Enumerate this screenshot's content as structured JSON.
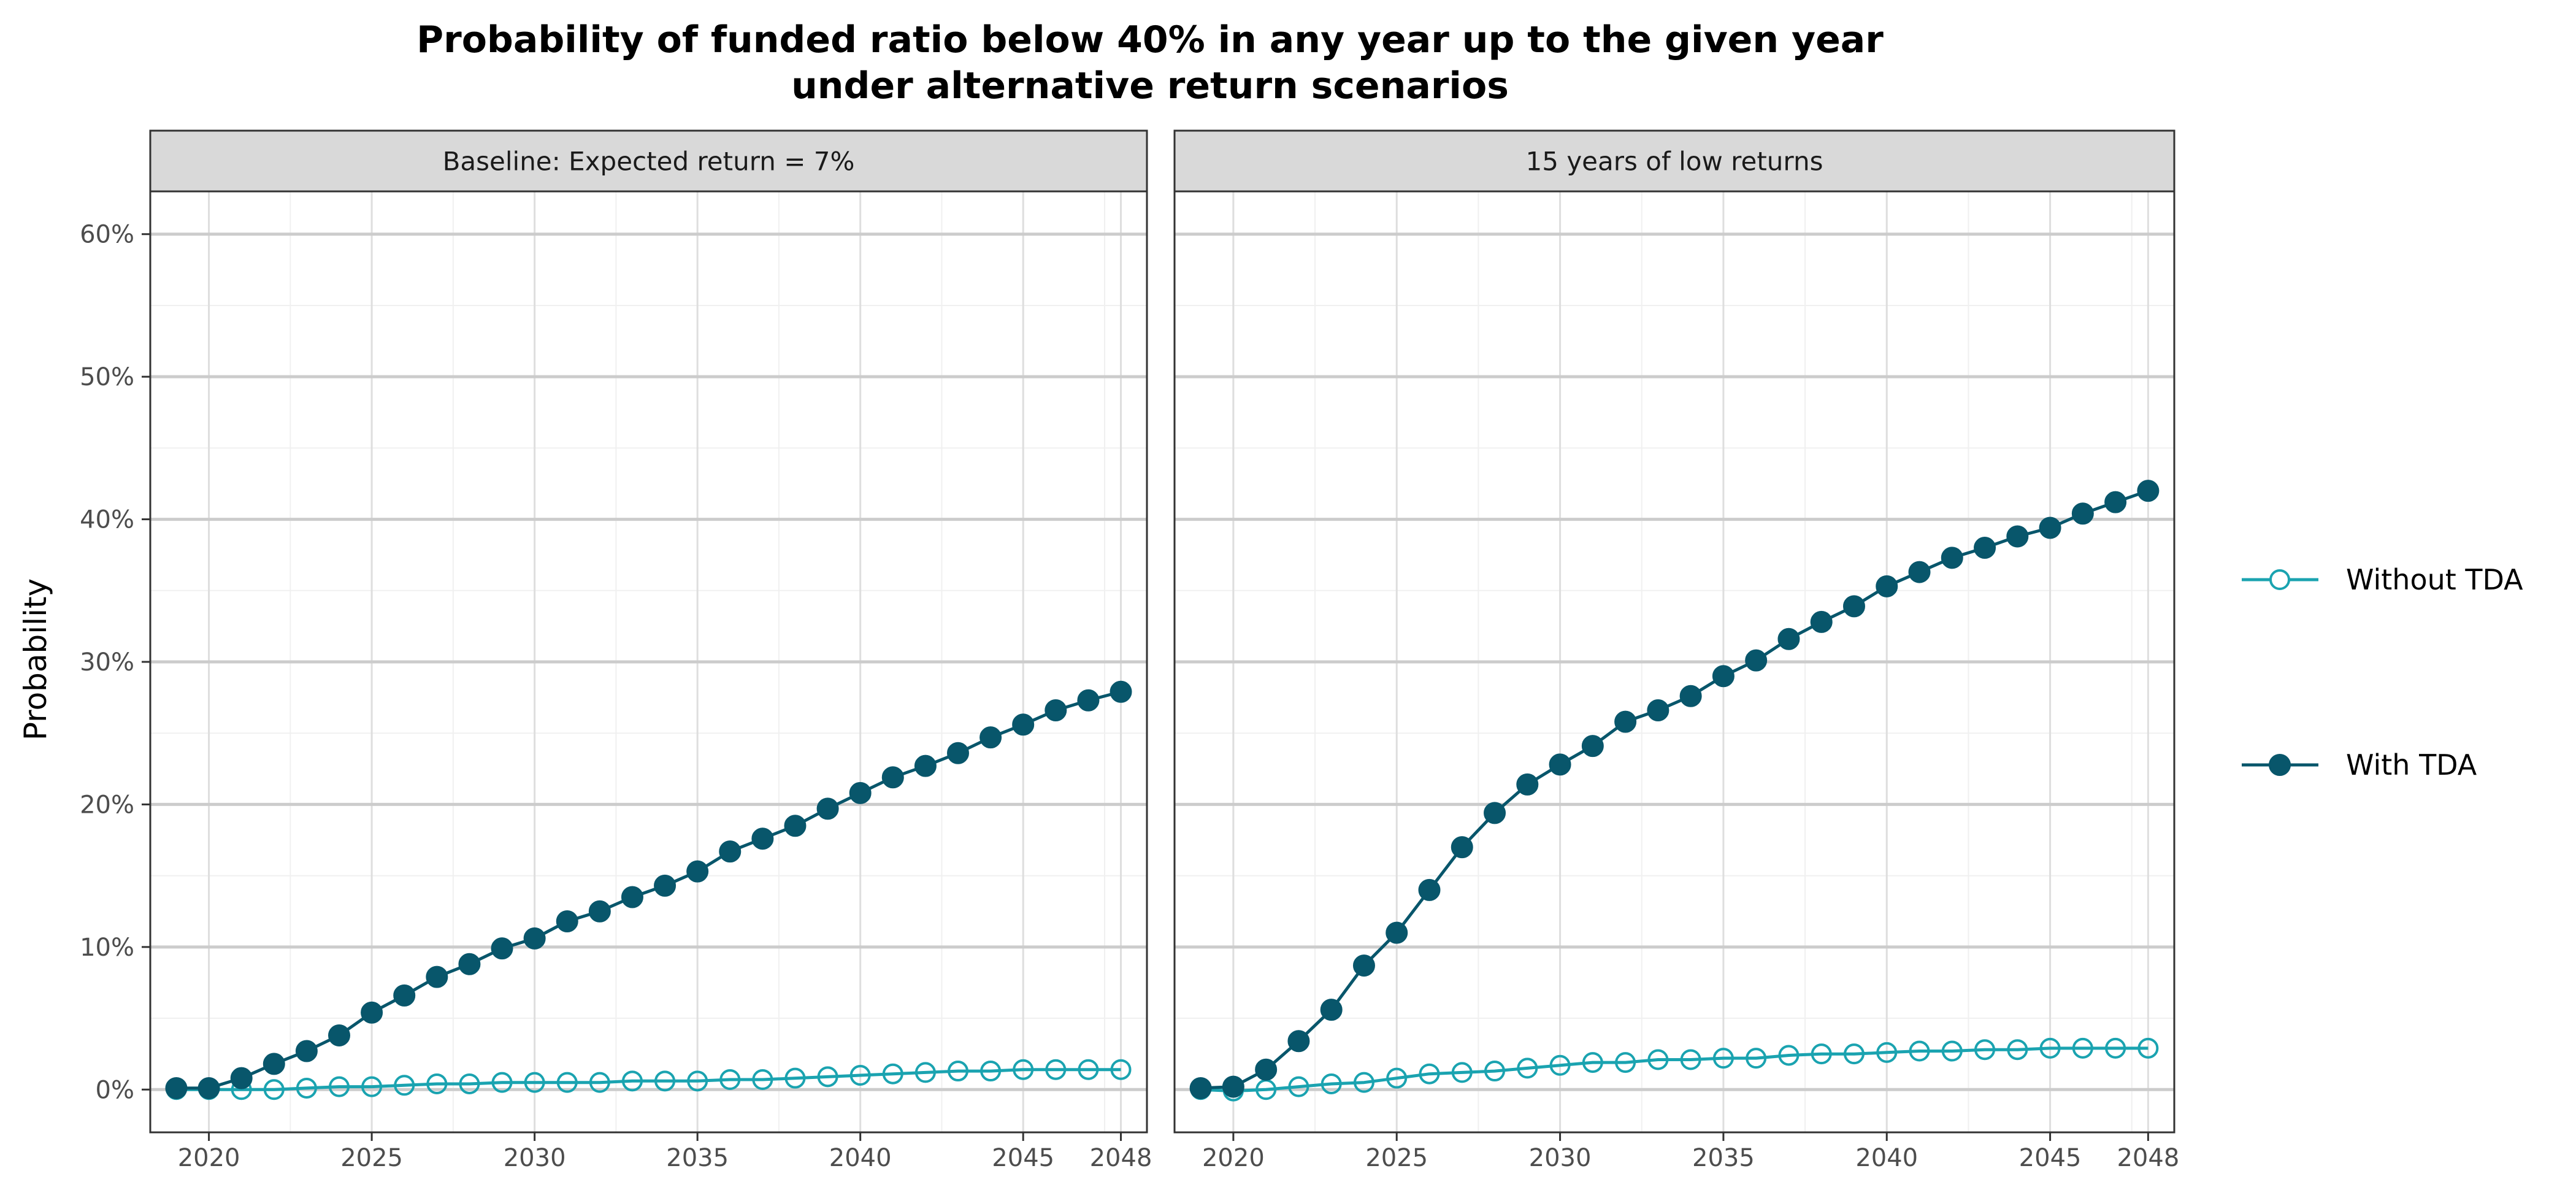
{
  "chart_data": {
    "type": "line",
    "title_lines": [
      "Probability of funded ratio below 40% in any year up to the given year",
      "under alternative return scenarios"
    ],
    "ylabel": "Probability",
    "xlabel": "",
    "xlim": [
      2018.2,
      2048.8
    ],
    "ylim": [
      -0.03,
      0.63
    ],
    "x_ticks": [
      2020,
      2025,
      2030,
      2035,
      2040,
      2045,
      2048
    ],
    "x_tick_labels": [
      "2020",
      "2025",
      "2030",
      "2035",
      "2040",
      "2045",
      "2048"
    ],
    "y_ticks": [
      0,
      0.1,
      0.2,
      0.3,
      0.4,
      0.5,
      0.6
    ],
    "y_tick_labels": [
      "0%",
      "10%",
      "20%",
      "30%",
      "40%",
      "50%",
      "60%"
    ],
    "grid": true,
    "legend_position": "right",
    "legend": [
      {
        "label": "Without TDA",
        "series_key": "without_tda"
      },
      {
        "label": "With TDA",
        "series_key": "with_tda"
      }
    ],
    "colors": {
      "without_tda": "#1aa3b0",
      "with_tda": "#08566b"
    },
    "years": [
      2019,
      2020,
      2021,
      2022,
      2023,
      2024,
      2025,
      2026,
      2027,
      2028,
      2029,
      2030,
      2031,
      2032,
      2033,
      2034,
      2035,
      2036,
      2037,
      2038,
      2039,
      2040,
      2041,
      2042,
      2043,
      2044,
      2045,
      2046,
      2047,
      2048
    ],
    "panels": [
      {
        "strip_label": "Baseline: Expected return = 7%",
        "series": [
          {
            "name": "Without TDA",
            "key": "without_tda",
            "marker": "open-circle",
            "values": [
              0,
              0,
              0,
              0,
              0.001,
              0.002,
              0.002,
              0.003,
              0.004,
              0.004,
              0.005,
              0.005,
              0.005,
              0.005,
              0.006,
              0.006,
              0.006,
              0.007,
              0.007,
              0.008,
              0.009,
              0.01,
              0.011,
              0.012,
              0.013,
              0.013,
              0.014,
              0.014,
              0.014,
              0.014
            ]
          },
          {
            "name": "With TDA",
            "key": "with_tda",
            "marker": "filled-circle",
            "values": [
              0.001,
              0.001,
              0.008,
              0.018,
              0.027,
              0.038,
              0.054,
              0.066,
              0.079,
              0.088,
              0.099,
              0.106,
              0.118,
              0.125,
              0.135,
              0.143,
              0.153,
              0.167,
              0.176,
              0.185,
              0.197,
              0.208,
              0.219,
              0.227,
              0.236,
              0.247,
              0.256,
              0.266,
              0.273,
              0.279
            ]
          }
        ]
      },
      {
        "strip_label": "15 years of low returns",
        "series": [
          {
            "name": "Without TDA",
            "key": "without_tda",
            "marker": "open-circle",
            "values": [
              0,
              -0.001,
              0,
              0.002,
              0.004,
              0.005,
              0.008,
              0.011,
              0.012,
              0.013,
              0.015,
              0.017,
              0.019,
              0.019,
              0.021,
              0.021,
              0.022,
              0.022,
              0.024,
              0.025,
              0.025,
              0.026,
              0.027,
              0.027,
              0.028,
              0.028,
              0.029,
              0.029,
              0.029,
              0.029
            ]
          },
          {
            "name": "With TDA",
            "key": "with_tda",
            "marker": "filled-circle",
            "values": [
              0.001,
              0.002,
              0.014,
              0.034,
              0.056,
              0.087,
              0.11,
              0.14,
              0.17,
              0.194,
              0.214,
              0.228,
              0.241,
              0.258,
              0.266,
              0.276,
              0.29,
              0.301,
              0.316,
              0.328,
              0.339,
              0.353,
              0.363,
              0.373,
              0.38,
              0.388,
              0.394,
              0.404,
              0.412,
              0.42
            ]
          }
        ]
      }
    ]
  }
}
